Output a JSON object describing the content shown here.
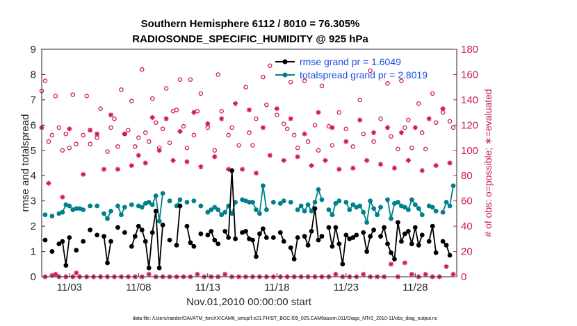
{
  "chart_data": {
    "type": "line",
    "title_line1": "Southern Hemisphere 6112 / 8010 = 76.305%",
    "title_line2": "RADIOSONDE_SPECIFIC_HUMIDITY @ 925 hPa",
    "ylabel_left": "rmse and totalspread",
    "ylabel_right": "# of obs: o=possible; ∗=evaluated",
    "xlabel": "Nov.01,2010 00:00:00 start",
    "footer": "data file: /Users/raeder/DAI/ATM_forcXX/CAM6_setup/f.e21.FHIST_BGC.f09_025.CAM6assim.011/Diags_NTrS_2010-11/obs_diag_output.nc",
    "ylim_left": [
      0,
      9
    ],
    "ylim_right": [
      0,
      180
    ],
    "yticks_left": [
      "0",
      "1",
      "2",
      "3",
      "4",
      "5",
      "6",
      "7",
      "8",
      "9"
    ],
    "yticks_right": [
      "0",
      "20",
      "40",
      "60",
      "80",
      "100",
      "120",
      "140",
      "160",
      "180"
    ],
    "xlim": [
      1,
      31
    ],
    "xticks": [
      {
        "day": 3,
        "label": "11/03"
      },
      {
        "day": 8,
        "label": "11/08"
      },
      {
        "day": 13,
        "label": "11/13"
      },
      {
        "day": 18,
        "label": "11/18"
      },
      {
        "day": 23,
        "label": "11/23"
      },
      {
        "day": 28,
        "label": "11/28"
      }
    ],
    "legend": [
      {
        "name": "rmse",
        "label": "rmse grand pr = 1.6049",
        "color": "#000000"
      },
      {
        "name": "totalspread",
        "label": "totalspread grand pr = 2.8019",
        "color": "#00808a"
      }
    ],
    "colors": {
      "rmse": "#000000",
      "spread": "#00808a",
      "obs": "#d1155f"
    },
    "x": [
      1.25,
      1.5,
      1.75,
      2.0,
      2.25,
      2.5,
      2.75,
      3.0,
      3.25,
      3.5,
      3.75,
      4.0,
      4.25,
      4.5,
      4.75,
      5.0,
      5.25,
      5.5,
      5.75,
      6.0,
      6.25,
      6.5,
      6.75,
      7.0,
      7.25,
      7.5,
      7.75,
      8.0,
      8.25,
      8.5,
      8.75,
      9.0,
      9.25,
      9.5,
      9.75,
      10.0,
      10.25,
      10.5,
      10.75,
      11.0,
      11.25,
      11.5,
      11.75,
      12.0,
      12.25,
      12.5,
      12.75,
      13.0,
      13.25,
      13.5,
      13.75,
      14.0,
      14.25,
      14.5,
      14.75,
      15.0,
      15.25,
      15.5,
      15.75,
      16.0,
      16.25,
      16.5,
      16.75,
      17.0,
      17.25,
      17.5,
      17.75,
      18.0,
      18.25,
      18.5,
      18.75,
      19.0,
      19.25,
      19.5,
      19.75,
      20.0,
      20.25,
      20.5,
      20.75,
      21.0,
      21.25,
      21.5,
      21.75,
      22.0,
      22.25,
      22.5,
      22.75,
      23.0,
      23.25,
      23.5,
      23.75,
      24.0,
      24.25,
      24.5,
      24.75,
      25.0,
      25.25,
      25.5,
      25.75,
      26.0,
      26.25,
      26.5,
      26.75,
      27.0,
      27.25,
      27.5,
      27.75,
      28.0,
      28.25,
      28.5,
      28.75,
      29.0,
      29.25,
      29.5,
      29.75,
      30.0,
      30.25,
      30.5,
      30.75
    ],
    "rmse": [
      1.45,
      null,
      1.0,
      null,
      1.3,
      1.4,
      0.45,
      1.55,
      null,
      1.05,
      null,
      1.4,
      null,
      1.85,
      null,
      1.65,
      null,
      1.6,
      0.55,
      1.4,
      null,
      1.95,
      null,
      1.75,
      null,
      1.2,
      1.6,
      2.0,
      1.85,
      1.4,
      0.35,
      1.75,
      2.6,
      0.35,
      2.05,
      null,
      1.45,
      null,
      1.25,
      2.8,
      null,
      2.0,
      1.35,
      1.2,
      null,
      1.7,
      null,
      1.65,
      1.8,
      1.45,
      1.3,
      null,
      1.8,
      1.55,
      4.2,
      1.5,
      null,
      1.75,
      1.8,
      1.5,
      1.45,
      0.8,
      1.7,
      1.9,
      1.55,
      null,
      1.55,
      null,
      1.75,
      1.4,
      null,
      1.15,
      0.7,
      1.55,
      null,
      1.6,
      1.25,
      1.8,
      2.7,
      1.45,
      1.6,
      null,
      1.95,
      1.2,
      1.95,
      1.3,
      0.5,
      1.65,
      1.5,
      1.55,
      1.65,
      null,
      1.75,
      1.0,
      1.6,
      1.85,
      null,
      1.6,
      1.95,
      1.3,
      0.95,
      0.7,
      2.15,
      1.4,
      1.7,
      1.8,
      1.3,
      1.95,
      1.25,
      1.65,
      null,
      1.4,
      2.0,
      0.95,
      null,
      1.4,
      1.25,
      0.85,
      null
    ],
    "spread": [
      2.45,
      null,
      2.4,
      null,
      2.5,
      2.55,
      2.85,
      2.8,
      2.65,
      2.7,
      2.7,
      2.65,
      null,
      2.8,
      null,
      2.8,
      null,
      2.5,
      2.3,
      2.6,
      null,
      2.8,
      2.45,
      2.75,
      null,
      2.85,
      null,
      2.8,
      2.75,
      2.9,
      2.95,
      2.85,
      3.2,
      2.2,
      3.3,
      null,
      3.0,
      null,
      2.8,
      3.05,
      null,
      2.95,
      null,
      3.0,
      null,
      2.8,
      null,
      2.55,
      2.65,
      2.75,
      2.65,
      2.45,
      2.55,
      2.8,
      2.5,
      2.95,
      null,
      3.05,
      3.0,
      2.95,
      2.95,
      2.65,
      2.5,
      3.6,
      2.65,
      null,
      2.95,
      null,
      2.9,
      3.0,
      null,
      2.95,
      null,
      2.65,
      2.8,
      2.6,
      2.85,
      2.6,
      2.95,
      3.45,
      3.05,
      null,
      2.65,
      2.45,
      2.9,
      3.0,
      null,
      2.95,
      2.65,
      2.85,
      2.75,
      2.8,
      2.55,
      2.15,
      3.0,
      2.7,
      2.45,
      2.75,
      null,
      3.05,
      2.3,
      2.9,
      2.95,
      2.8,
      2.75,
      2.65,
      3.05,
      2.85,
      2.7,
      2.45,
      null,
      2.8,
      2.75,
      2.6,
      null,
      2.55,
      2.95,
      2.8,
      3.6
    ],
    "possible": [
      {
        "x": 1.0,
        "y": 147
      },
      {
        "x": 1.25,
        "y": 155
      },
      {
        "x": 1.5,
        "y": 107
      },
      {
        "x": 1.75,
        "y": 112
      },
      {
        "x": 2.0,
        "y": 143
      },
      {
        "x": 2.25,
        "y": 118
      },
      {
        "x": 2.5,
        "y": 100
      },
      {
        "x": 2.75,
        "y": 113
      },
      {
        "x": 3.0,
        "y": 102
      },
      {
        "x": 3.25,
        "y": 144
      },
      {
        "x": 3.5,
        "y": 105
      },
      {
        "x": 4.0,
        "y": 112
      },
      {
        "x": 4.25,
        "y": 143
      },
      {
        "x": 4.5,
        "y": 105
      },
      {
        "x": 5.0,
        "y": 110
      },
      {
        "x": 5.25,
        "y": 133
      },
      {
        "x": 5.75,
        "y": 99
      },
      {
        "x": 6.0,
        "y": 118
      },
      {
        "x": 6.25,
        "y": 125
      },
      {
        "x": 6.5,
        "y": 103
      },
      {
        "x": 6.75,
        "y": 148
      },
      {
        "x": 7.0,
        "y": 113
      },
      {
        "x": 7.25,
        "y": 116
      },
      {
        "x": 7.5,
        "y": 139
      },
      {
        "x": 7.75,
        "y": 103
      },
      {
        "x": 8.0,
        "y": 110
      },
      {
        "x": 8.25,
        "y": 164
      },
      {
        "x": 8.5,
        "y": 114
      },
      {
        "x": 8.75,
        "y": 107
      },
      {
        "x": 9.0,
        "y": 141
      },
      {
        "x": 9.25,
        "y": 122
      },
      {
        "x": 9.5,
        "y": 102
      },
      {
        "x": 9.75,
        "y": 117
      },
      {
        "x": 10.0,
        "y": 149
      },
      {
        "x": 10.25,
        "y": 106
      },
      {
        "x": 10.5,
        "y": 131
      },
      {
        "x": 10.75,
        "y": 132
      },
      {
        "x": 11.0,
        "y": 156
      },
      {
        "x": 11.25,
        "y": 119
      },
      {
        "x": 11.5,
        "y": 102
      },
      {
        "x": 11.75,
        "y": 156
      },
      {
        "x": 12.0,
        "y": 112
      },
      {
        "x": 12.25,
        "y": 131
      },
      {
        "x": 12.5,
        "y": 145
      },
      {
        "x": 13.0,
        "y": 118
      },
      {
        "x": 13.5,
        "y": 100
      },
      {
        "x": 13.75,
        "y": 160
      },
      {
        "x": 14.0,
        "y": 131
      },
      {
        "x": 14.5,
        "y": 112
      },
      {
        "x": 14.75,
        "y": 118
      },
      {
        "x": 15.25,
        "y": 104
      },
      {
        "x": 15.75,
        "y": 150
      },
      {
        "x": 16.0,
        "y": 114
      },
      {
        "x": 16.25,
        "y": 104
      },
      {
        "x": 16.5,
        "y": 125
      },
      {
        "x": 17.0,
        "y": 158
      },
      {
        "x": 17.25,
        "y": 136
      },
      {
        "x": 17.5,
        "y": 167
      },
      {
        "x": 18.0,
        "y": 128
      },
      {
        "x": 18.5,
        "y": 121
      },
      {
        "x": 18.75,
        "y": 117
      },
      {
        "x": 19.0,
        "y": 154
      },
      {
        "x": 19.25,
        "y": 112
      },
      {
        "x": 19.5,
        "y": 102
      },
      {
        "x": 20.0,
        "y": 155
      },
      {
        "x": 20.25,
        "y": 107
      },
      {
        "x": 20.75,
        "y": 120
      },
      {
        "x": 21.0,
        "y": 100
      },
      {
        "x": 21.25,
        "y": 151
      },
      {
        "x": 21.75,
        "y": 119
      },
      {
        "x": 22.0,
        "y": 104
      },
      {
        "x": 22.5,
        "y": 130
      },
      {
        "x": 23.0,
        "y": 117
      },
      {
        "x": 23.5,
        "y": 103
      },
      {
        "x": 24.0,
        "y": 140
      },
      {
        "x": 24.25,
        "y": 113
      },
      {
        "x": 24.75,
        "y": 163
      },
      {
        "x": 25.0,
        "y": 107
      },
      {
        "x": 25.5,
        "y": 125
      },
      {
        "x": 26.0,
        "y": 153
      },
      {
        "x": 26.25,
        "y": 111
      },
      {
        "x": 26.75,
        "y": 101
      },
      {
        "x": 27.0,
        "y": 155
      },
      {
        "x": 27.25,
        "y": 118
      },
      {
        "x": 27.5,
        "y": 124
      },
      {
        "x": 27.75,
        "y": 102
      },
      {
        "x": 28.25,
        "y": 137
      },
      {
        "x": 28.5,
        "y": 114
      },
      {
        "x": 28.75,
        "y": 101
      },
      {
        "x": 29.25,
        "y": 145
      },
      {
        "x": 29.5,
        "y": 122
      },
      {
        "x": 30.0,
        "y": 130
      },
      {
        "x": 30.5,
        "y": 123
      },
      {
        "x": 30.75,
        "y": 118
      }
    ],
    "evaluated": [
      {
        "x": 1.0,
        "y": 118
      },
      {
        "x": 1.25,
        "y": 0
      },
      {
        "x": 1.5,
        "y": 74
      },
      {
        "x": 1.75,
        "y": 1
      },
      {
        "x": 2.0,
        "y": 2
      },
      {
        "x": 2.25,
        "y": 0
      },
      {
        "x": 2.5,
        "y": 63
      },
      {
        "x": 2.75,
        "y": 0
      },
      {
        "x": 3.0,
        "y": 117
      },
      {
        "x": 3.25,
        "y": 0
      },
      {
        "x": 3.5,
        "y": 3
      },
      {
        "x": 3.75,
        "y": 0
      },
      {
        "x": 4.0,
        "y": 81
      },
      {
        "x": 4.25,
        "y": 0
      },
      {
        "x": 4.5,
        "y": 116
      },
      {
        "x": 4.75,
        "y": 0
      },
      {
        "x": 5.0,
        "y": 113
      },
      {
        "x": 5.25,
        "y": 0
      },
      {
        "x": 5.5,
        "y": 85
      },
      {
        "x": 5.75,
        "y": 0
      },
      {
        "x": 6.0,
        "y": 128
      },
      {
        "x": 6.25,
        "y": 0
      },
      {
        "x": 6.5,
        "y": 85
      },
      {
        "x": 6.75,
        "y": 0
      },
      {
        "x": 7.0,
        "y": 113
      },
      {
        "x": 7.25,
        "y": 0
      },
      {
        "x": 7.5,
        "y": 88
      },
      {
        "x": 7.75,
        "y": 0
      },
      {
        "x": 8.0,
        "y": 96
      },
      {
        "x": 8.25,
        "y": 0
      },
      {
        "x": 8.5,
        "y": 90
      },
      {
        "x": 8.75,
        "y": 2
      },
      {
        "x": 9.0,
        "y": 126
      },
      {
        "x": 9.25,
        "y": 0
      },
      {
        "x": 9.5,
        "y": 100
      },
      {
        "x": 9.75,
        "y": 0
      },
      {
        "x": 10.0,
        "y": 125
      },
      {
        "x": 10.25,
        "y": 0
      },
      {
        "x": 10.5,
        "y": 92
      },
      {
        "x": 10.75,
        "y": 0
      },
      {
        "x": 11.0,
        "y": 115
      },
      {
        "x": 11.25,
        "y": 0
      },
      {
        "x": 11.5,
        "y": 91
      },
      {
        "x": 11.75,
        "y": 0
      },
      {
        "x": 12.0,
        "y": 130
      },
      {
        "x": 12.25,
        "y": 2
      },
      {
        "x": 12.5,
        "y": 87
      },
      {
        "x": 12.75,
        "y": 0
      },
      {
        "x": 13.0,
        "y": 121
      },
      {
        "x": 13.25,
        "y": 0
      },
      {
        "x": 13.5,
        "y": 95
      },
      {
        "x": 13.75,
        "y": 0
      },
      {
        "x": 14.0,
        "y": 125
      },
      {
        "x": 14.25,
        "y": 2
      },
      {
        "x": 14.5,
        "y": 85
      },
      {
        "x": 14.75,
        "y": 0
      },
      {
        "x": 15.0,
        "y": 137
      },
      {
        "x": 15.25,
        "y": 0
      },
      {
        "x": 15.5,
        "y": 85
      },
      {
        "x": 15.75,
        "y": 0
      },
      {
        "x": 16.0,
        "y": 132
      },
      {
        "x": 16.25,
        "y": 0
      },
      {
        "x": 16.5,
        "y": 82
      },
      {
        "x": 16.75,
        "y": 0
      },
      {
        "x": 17.0,
        "y": 118
      },
      {
        "x": 17.25,
        "y": 0
      },
      {
        "x": 17.5,
        "y": 96
      },
      {
        "x": 17.75,
        "y": 0
      },
      {
        "x": 18.0,
        "y": 133
      },
      {
        "x": 18.25,
        "y": 0
      },
      {
        "x": 18.5,
        "y": 92
      },
      {
        "x": 18.75,
        "y": 0
      },
      {
        "x": 19.0,
        "y": 125
      },
      {
        "x": 19.25,
        "y": 0
      },
      {
        "x": 19.5,
        "y": 95
      },
      {
        "x": 19.75,
        "y": 0
      },
      {
        "x": 20.0,
        "y": 113
      },
      {
        "x": 20.25,
        "y": 0
      },
      {
        "x": 20.5,
        "y": 88
      },
      {
        "x": 20.75,
        "y": 0
      },
      {
        "x": 21.0,
        "y": 130
      },
      {
        "x": 21.25,
        "y": 0
      },
      {
        "x": 21.5,
        "y": 92
      },
      {
        "x": 21.75,
        "y": 0
      },
      {
        "x": 22.0,
        "y": 118
      },
      {
        "x": 22.25,
        "y": 2
      },
      {
        "x": 22.5,
        "y": 85
      },
      {
        "x": 22.75,
        "y": 0
      },
      {
        "x": 23.0,
        "y": 107
      },
      {
        "x": 23.25,
        "y": 0
      },
      {
        "x": 23.5,
        "y": 86
      },
      {
        "x": 23.75,
        "y": 0
      },
      {
        "x": 24.0,
        "y": 124
      },
      {
        "x": 24.25,
        "y": 2
      },
      {
        "x": 24.5,
        "y": 92
      },
      {
        "x": 24.75,
        "y": 0
      },
      {
        "x": 25.0,
        "y": 114
      },
      {
        "x": 25.25,
        "y": 0
      },
      {
        "x": 25.5,
        "y": 89
      },
      {
        "x": 25.75,
        "y": 0
      },
      {
        "x": 26.0,
        "y": 118
      },
      {
        "x": 26.25,
        "y": 10
      },
      {
        "x": 26.5,
        "y": 86
      },
      {
        "x": 26.75,
        "y": 0
      },
      {
        "x": 27.0,
        "y": 114
      },
      {
        "x": 27.25,
        "y": 11
      },
      {
        "x": 27.5,
        "y": 92
      },
      {
        "x": 27.75,
        "y": 2
      },
      {
        "x": 28.0,
        "y": 118
      },
      {
        "x": 28.25,
        "y": 0
      },
      {
        "x": 28.5,
        "y": 84
      },
      {
        "x": 28.75,
        "y": 2
      },
      {
        "x": 29.0,
        "y": 125
      },
      {
        "x": 29.25,
        "y": 0
      },
      {
        "x": 29.5,
        "y": 88
      },
      {
        "x": 29.75,
        "y": 0
      },
      {
        "x": 30.0,
        "y": 133
      },
      {
        "x": 30.25,
        "y": 8
      },
      {
        "x": 30.5,
        "y": 90
      },
      {
        "x": 30.75,
        "y": 2
      }
    ]
  }
}
